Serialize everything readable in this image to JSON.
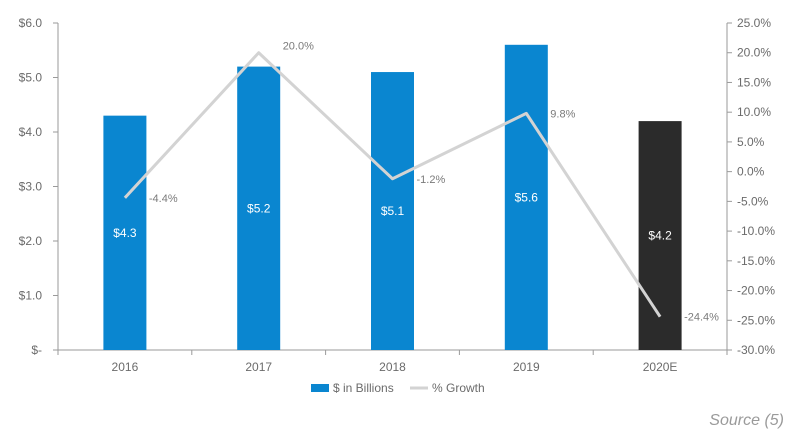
{
  "chart_data": {
    "type": "bar+line",
    "categories": [
      "2016",
      "2017",
      "2018",
      "2019",
      "2020E"
    ],
    "series": [
      {
        "name": "$ in Billions",
        "type": "bar",
        "axis": "left",
        "values": [
          4.3,
          5.2,
          5.1,
          5.6,
          4.2
        ],
        "data_labels": [
          "$4.3",
          "$5.2",
          "$5.1",
          "$5.6",
          "$4.2"
        ],
        "colors": [
          "#0a86d0",
          "#0a86d0",
          "#0a86d0",
          "#0a86d0",
          "#2b2b2b"
        ]
      },
      {
        "name": "% Growth",
        "type": "line",
        "axis": "right",
        "values": [
          -4.4,
          20.0,
          -1.2,
          9.8,
          -24.4
        ],
        "data_labels": [
          "-4.4%",
          "20.0%",
          "-1.2%",
          "9.8%",
          "-24.4%"
        ],
        "color": "#d3d3d3"
      }
    ],
    "left_axis": {
      "min": 0,
      "max": 6,
      "step": 1,
      "tick_labels": [
        "$-",
        "$1.0",
        "$2.0",
        "$3.0",
        "$4.0",
        "$5.0",
        "$6.0"
      ]
    },
    "right_axis": {
      "min": -30,
      "max": 25,
      "step": 5,
      "tick_labels": [
        "-30.0%",
        "-25.0%",
        "-20.0%",
        "-15.0%",
        "-10.0%",
        "-5.0%",
        "0.0%",
        "5.0%",
        "10.0%",
        "15.0%",
        "20.0%",
        "25.0%"
      ]
    },
    "legend": {
      "position": "bottom",
      "items": [
        {
          "label": "$ in Billions",
          "color": "#0a86d0"
        },
        {
          "label": "% Growth",
          "color": "#d3d3d3"
        }
      ]
    },
    "grid": false
  },
  "footer": {
    "source": "Source (5)"
  }
}
